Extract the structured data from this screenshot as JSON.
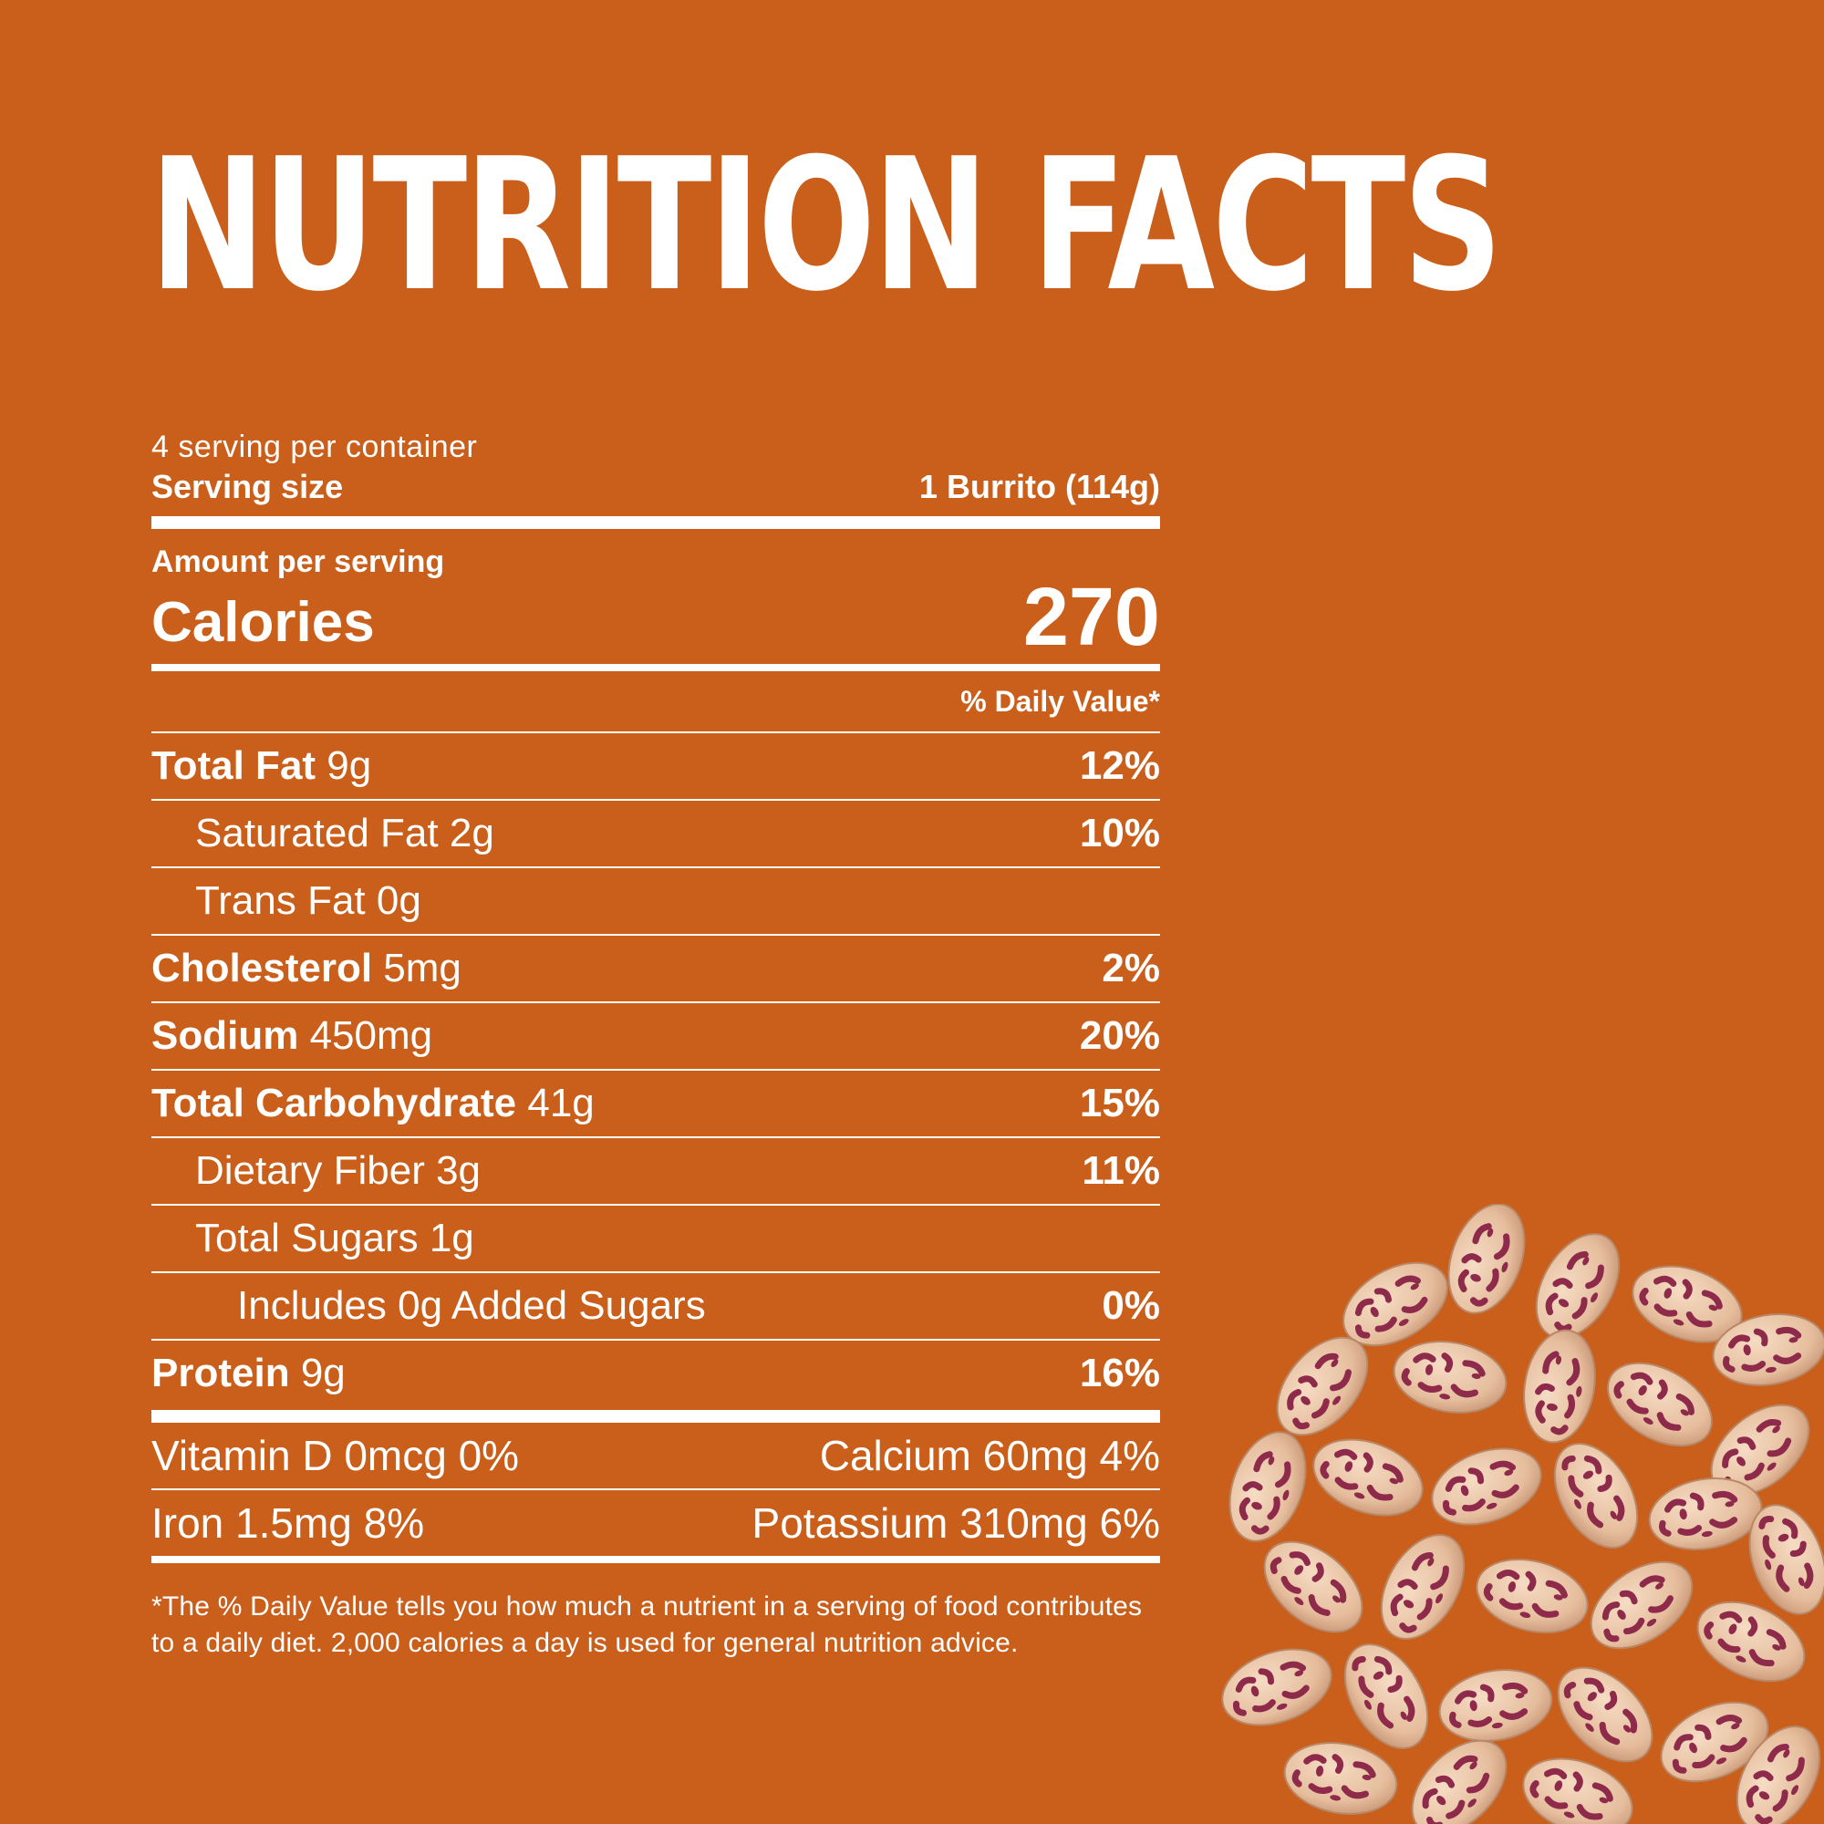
{
  "title": "NUTRITION FACTS",
  "servings_per_container": "4 serving per container",
  "serving_size": {
    "label": "Serving size",
    "value": "1 Burrito (114g)"
  },
  "amount_per_serving": "Amount per serving",
  "calories": {
    "label": "Calories",
    "value": "270"
  },
  "daily_value_header": "% Daily Value*",
  "nutrients": {
    "total_fat": {
      "name": "Total Fat",
      "amount": "9g",
      "dv": "12%"
    },
    "saturated_fat": {
      "name": "Saturated Fat",
      "amount": "2g",
      "dv": "10%"
    },
    "trans_fat": {
      "name": "Trans Fat",
      "amount": "0g",
      "dv": ""
    },
    "cholesterol": {
      "name": "Cholesterol",
      "amount": "5mg",
      "dv": "2%"
    },
    "sodium": {
      "name": "Sodium",
      "amount": "450mg",
      "dv": "20%"
    },
    "total_carbohydrate": {
      "name": "Total Carbohydrate",
      "amount": "41g",
      "dv": "15%"
    },
    "dietary_fiber": {
      "name": "Dietary Fiber",
      "amount": "3g",
      "dv": "11%"
    },
    "total_sugars": {
      "name": "Total Sugars",
      "amount": "1g",
      "dv": ""
    },
    "added_sugars": {
      "name": "Includes 0g Added Sugars",
      "dv": "0%"
    },
    "protein": {
      "name": "Protein",
      "amount": "9g",
      "dv": "16%"
    }
  },
  "vitamins": {
    "vitamin_d": "Vitamin D 0mcg 0%",
    "calcium": "Calcium 60mg 4%",
    "iron": "Iron 1.5mg 8%",
    "potassium": "Potassium 310mg 6%"
  },
  "footnote": "*The % Daily Value tells you how much a nutrient in a serving of food contributes to a daily diet. 2,000 calories a day is used for general nutrition advice.",
  "colors": {
    "background": "#C95F1B",
    "text": "#FFFFFF",
    "bean_base": "#E8C3A3",
    "bean_speckle": "#8E2A4A"
  },
  "image": "pinto-beans-pile"
}
